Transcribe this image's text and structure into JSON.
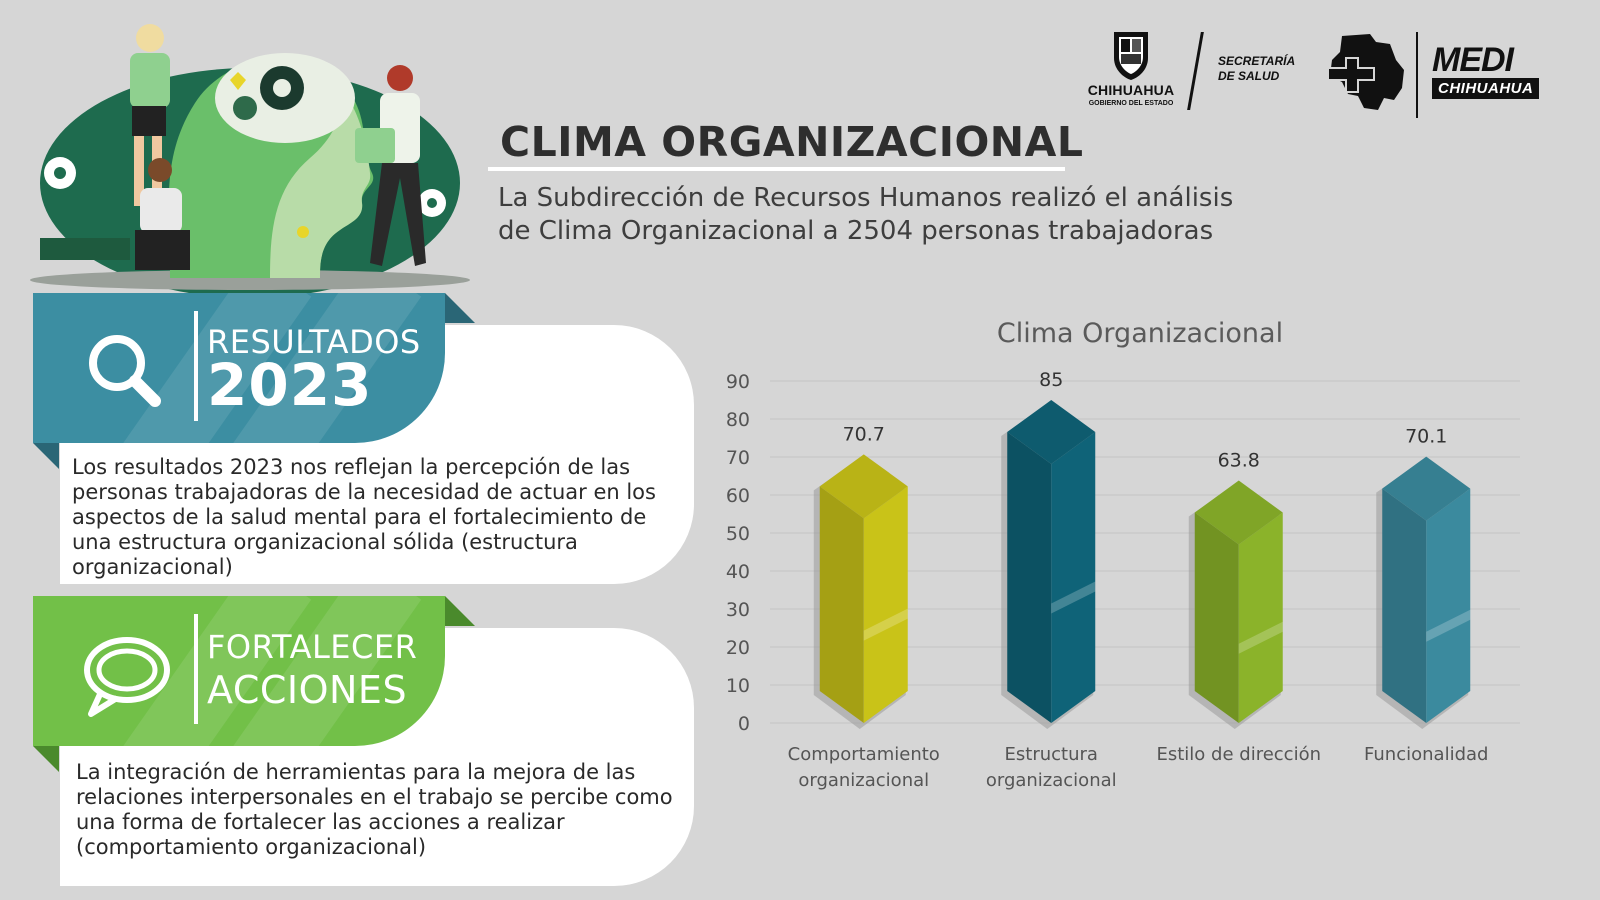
{
  "header": {
    "title": "CLIMA ORGANIZACIONAL",
    "subtitle_line1": "La Subdirección de Recursos Humanos realizó el análisis",
    "subtitle_line2": "de Clima Organizacional a 2504 personas trabajadoras"
  },
  "logos": {
    "chihuahua_name": "CHIHUAHUA",
    "chihuahua_sub": "GOBIERNO DEL ESTADO",
    "secretaria_line1": "SECRETARÍA",
    "secretaria_line2": "DE SALUD",
    "medi_line1": "MEDI",
    "medi_line2": "CHIHUAHUA"
  },
  "panels": {
    "resultados": {
      "label_line1": "RESULTADOS",
      "label_line2": "2023",
      "icon": "magnifier-icon",
      "color": "#3c8ea2",
      "text": "Los resultados 2023 nos reflejan la percepción de las personas trabajadoras de la necesidad de actuar en los aspectos de la salud mental para el fortalecimiento de una estructura organizacional sólida (estructura organizacional)"
    },
    "fortalecer": {
      "label_line1": "FORTALECER",
      "label_line2": "ACCIONES",
      "icon": "chat-bubbles-icon",
      "color": "#72c048",
      "text": "La integración de herramientas para la mejora de las relaciones interpersonales en el trabajo se percibe como una forma de fortalecer las acciones a realizar (comportamiento organizacional)"
    }
  },
  "chart_data": {
    "type": "bar",
    "title": "Clima Organizacional",
    "categories": [
      [
        "Comportamiento",
        "organizacional"
      ],
      [
        "Estructura",
        "organizacional"
      ],
      [
        "Estilo de dirección"
      ],
      [
        "Funcionalidad"
      ]
    ],
    "values": [
      70.7,
      85,
      63.8,
      70.1
    ],
    "value_labels": [
      "70.7",
      "85",
      "63.8",
      "70.1"
    ],
    "colors": [
      "#c9c318",
      "#0f6378",
      "#8bb32a",
      "#3b8a9e"
    ],
    "ylim": [
      0,
      90
    ],
    "yticks": [
      0,
      10,
      20,
      30,
      40,
      50,
      60,
      70,
      80,
      90
    ],
    "grid": true,
    "legend": "none"
  }
}
